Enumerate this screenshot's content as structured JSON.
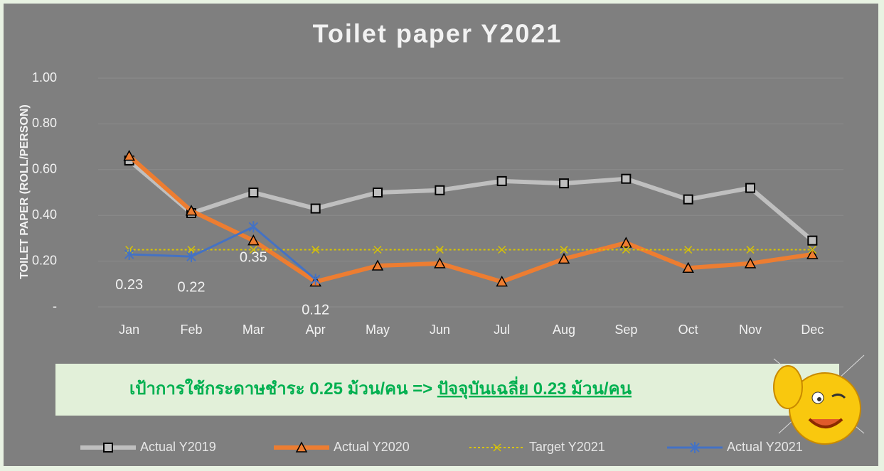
{
  "chart_data": {
    "type": "line",
    "title": "Toilet paper Y2021",
    "y_label": "TOILET PAPER (ROLL/PERSON)",
    "categories": [
      "Jan",
      "Feb",
      "Mar",
      "Apr",
      "May",
      "Jun",
      "Jul",
      "Aug",
      "Sep",
      "Oct",
      "Nov",
      "Dec"
    ],
    "ylim": [
      0,
      1
    ],
    "yticks": [
      {
        "value": 0,
        "label": "-"
      },
      {
        "value": 0.2,
        "label": "0.20"
      },
      {
        "value": 0.4,
        "label": "0.40"
      },
      {
        "value": 0.6,
        "label": "0.60"
      },
      {
        "value": 0.8,
        "label": "0.80"
      },
      {
        "value": 1,
        "label": "1.00"
      }
    ],
    "grid": true,
    "legend": "bottom",
    "series": [
      {
        "name": "Actual Y2019",
        "color": "#bfbfbf",
        "marker": "square",
        "dash": "solid",
        "width": 6,
        "values": [
          0.64,
          0.41,
          0.5,
          0.43,
          0.5,
          0.51,
          0.55,
          0.54,
          0.56,
          0.47,
          0.52,
          0.29
        ]
      },
      {
        "name": "Actual Y2020",
        "color": "#ed7d31",
        "marker": "triangle",
        "dash": "solid",
        "width": 6,
        "values": [
          0.66,
          0.42,
          0.29,
          0.11,
          0.18,
          0.19,
          0.11,
          0.21,
          0.28,
          0.17,
          0.19,
          0.23
        ]
      },
      {
        "name": "Target Y2021",
        "color": "#d9c400",
        "marker": "x",
        "dash": "dotted",
        "width": 2,
        "values": [
          0.25,
          0.25,
          0.25,
          0.25,
          0.25,
          0.25,
          0.25,
          0.25,
          0.25,
          0.25,
          0.25,
          0.25
        ]
      },
      {
        "name": "Actual Y2021",
        "color": "#4472c4",
        "marker": "star",
        "dash": "solid",
        "width": 3,
        "data_labels": true,
        "values": [
          0.23,
          0.22,
          0.35,
          0.12,
          null,
          null,
          null,
          null,
          null,
          null,
          null,
          null
        ]
      }
    ]
  },
  "banner": {
    "text": "เป้าการใช้กระดาษชำระ 0.25 ม้วน/คน  =>",
    "highlight": "ปัจจุบันเฉลี่ย 0.23 ม้วน/คน"
  }
}
